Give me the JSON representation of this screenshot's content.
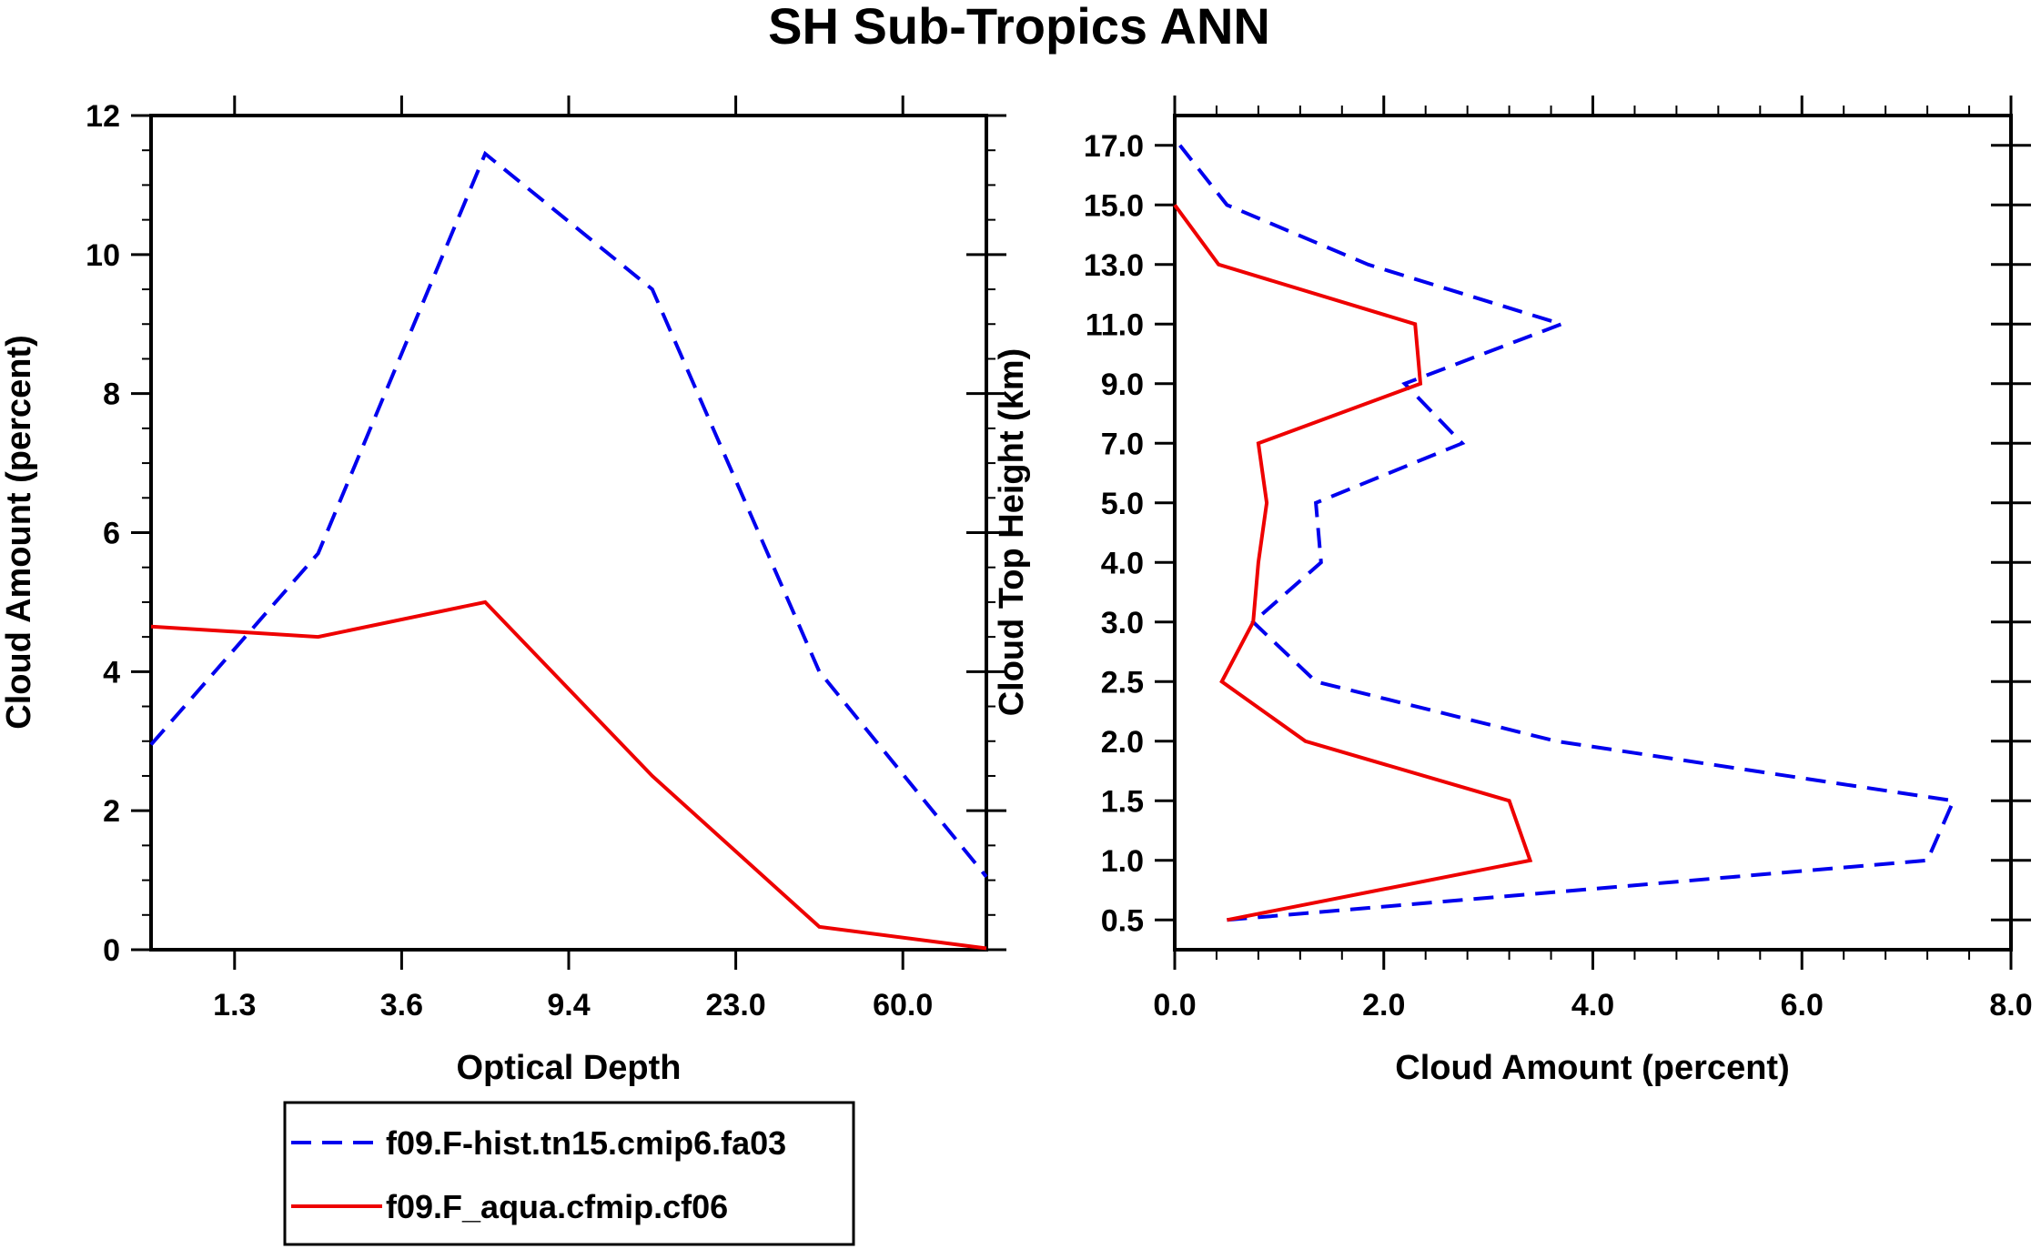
{
  "chart_data": [
    {
      "type": "line",
      "title": "SH Sub-Tropics ANN",
      "xlabel": "Optical Depth",
      "ylabel": "Cloud Amount (percent)",
      "x_scale": "bin-index",
      "x_bins": 6,
      "x_tick_labels": [
        "1.3",
        "3.6",
        "9.4",
        "23.0",
        "60.0"
      ],
      "ylim": [
        0,
        12
      ],
      "y_ticks": [
        0,
        2,
        4,
        6,
        8,
        10,
        12
      ],
      "y_tick_labels": [
        "0",
        "2",
        "4",
        "6",
        "8",
        "10",
        "12"
      ],
      "series": [
        {
          "name": "f09.F-hist.tn15.cmip6.fa03",
          "color": "#0000ee",
          "dash": "dashed",
          "x": [
            0,
            1,
            2,
            3,
            4,
            5
          ],
          "values": [
            2.95,
            5.7,
            11.45,
            9.5,
            4.0,
            1.05
          ]
        },
        {
          "name": "f09.F_aqua.cfmip.cf06",
          "color": "#ee0000",
          "dash": "solid",
          "x": [
            0,
            1,
            2,
            3,
            4,
            5
          ],
          "values": [
            4.65,
            4.5,
            5.0,
            2.5,
            0.33,
            0.02
          ]
        }
      ]
    },
    {
      "type": "line",
      "title": "SH Sub-Tropics ANN",
      "xlabel": "Cloud Amount (percent)",
      "ylabel": "Cloud Top Height (km)",
      "xlim": [
        0,
        8
      ],
      "x_ticks": [
        0,
        2,
        4,
        6,
        8
      ],
      "x_tick_labels": [
        "0.0",
        "2.0",
        "4.0",
        "6.0",
        "8.0"
      ],
      "y_scale": "level-index",
      "y_levels": 14,
      "y_tick_labels": [
        "0.5",
        "1.0",
        "1.5",
        "2.0",
        "2.5",
        "3.0",
        "4.0",
        "5.0",
        "7.0",
        "9.0",
        "11.0",
        "13.0",
        "15.0",
        "17.0"
      ],
      "series": [
        {
          "name": "f09.F-hist.tn15.cmip6.fa03",
          "color": "#0000ee",
          "dash": "dashed",
          "level": [
            0,
            1,
            2,
            3,
            4,
            5,
            6,
            7,
            8,
            9,
            10,
            11,
            12,
            13
          ],
          "values": [
            0.5,
            7.2,
            7.45,
            3.65,
            1.35,
            0.75,
            1.4,
            1.35,
            2.75,
            2.2,
            3.7,
            1.85,
            0.5,
            0.05
          ]
        },
        {
          "name": "f09.F_aqua.cfmip.cf06",
          "color": "#ee0000",
          "dash": "solid",
          "level": [
            0,
            1,
            2,
            3,
            4,
            5,
            6,
            7,
            8,
            9,
            10,
            11,
            12
          ],
          "values": [
            0.5,
            3.4,
            3.2,
            1.25,
            0.45,
            0.75,
            0.8,
            0.88,
            0.8,
            2.35,
            2.3,
            0.42,
            0.0
          ]
        }
      ]
    }
  ],
  "legend": {
    "entries": [
      {
        "label": "f09.F-hist.tn15.cmip6.fa03",
        "color": "#0000ee",
        "dash": "dashed"
      },
      {
        "label": "f09.F_aqua.cfmip.cf06",
        "color": "#ee0000",
        "dash": "solid"
      }
    ]
  }
}
